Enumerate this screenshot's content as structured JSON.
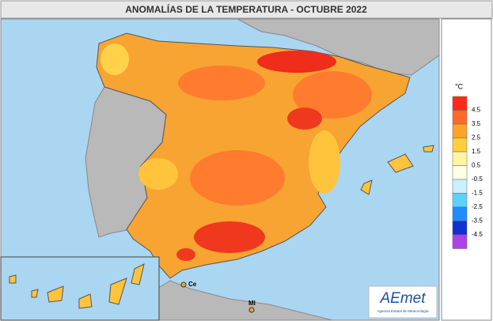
{
  "title": "ANOMALÍAS DE LA TEMPERATURA - OCTUBRE 2022",
  "legend": {
    "unit": "°C",
    "labels": [
      4.5,
      3.5,
      2.5,
      1.5,
      0.5,
      -0.5,
      -1.5,
      -2.5,
      -3.5,
      -4.5
    ],
    "colors": [
      "#ff2a1a",
      "#ff6a28",
      "#ffa22a",
      "#ffcf3a",
      "#fff5a0",
      "#ffffe6",
      "#c8f0ff",
      "#5cd0ff",
      "#1e8cff",
      "#1030d0",
      "#b040e8"
    ]
  },
  "places": {
    "ceuta": "Ce",
    "melilla": "Ml"
  },
  "logo": {
    "name": "AEmet",
    "subtitle": "Agencia Estatal de Meteorología"
  }
}
